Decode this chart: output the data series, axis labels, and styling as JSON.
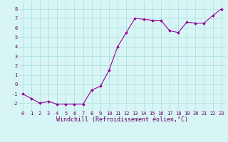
{
  "x": [
    0,
    1,
    2,
    3,
    4,
    5,
    6,
    7,
    8,
    9,
    10,
    11,
    12,
    13,
    14,
    15,
    16,
    17,
    18,
    19,
    20,
    21,
    22,
    23
  ],
  "y": [
    -1.0,
    -1.5,
    -2.0,
    -1.8,
    -2.1,
    -2.1,
    -2.1,
    -2.1,
    -0.6,
    -0.2,
    1.5,
    4.0,
    5.5,
    7.0,
    6.9,
    6.8,
    6.8,
    5.7,
    5.5,
    6.6,
    6.5,
    6.5,
    7.3,
    8.0
  ],
  "line_color": "#990099",
  "marker": "D",
  "marker_size": 1.8,
  "bg_color": "#d8f5f5",
  "grid_color": "#aadddd",
  "xlabel": "Windchill (Refroidissement éolien,°C)",
  "xlim": [
    -0.5,
    23.5
  ],
  "ylim": [
    -2.8,
    8.8
  ],
  "xticks": [
    0,
    1,
    2,
    3,
    4,
    5,
    6,
    7,
    8,
    9,
    10,
    11,
    12,
    13,
    14,
    15,
    16,
    17,
    18,
    19,
    20,
    21,
    22,
    23
  ],
  "yticks": [
    -2,
    -1,
    0,
    1,
    2,
    3,
    4,
    5,
    6,
    7,
    8
  ],
  "tick_label_fontsize": 5.0,
  "xlabel_fontsize": 6.0,
  "label_color": "#660066",
  "tick_color": "#660066",
  "linewidth": 0.8
}
